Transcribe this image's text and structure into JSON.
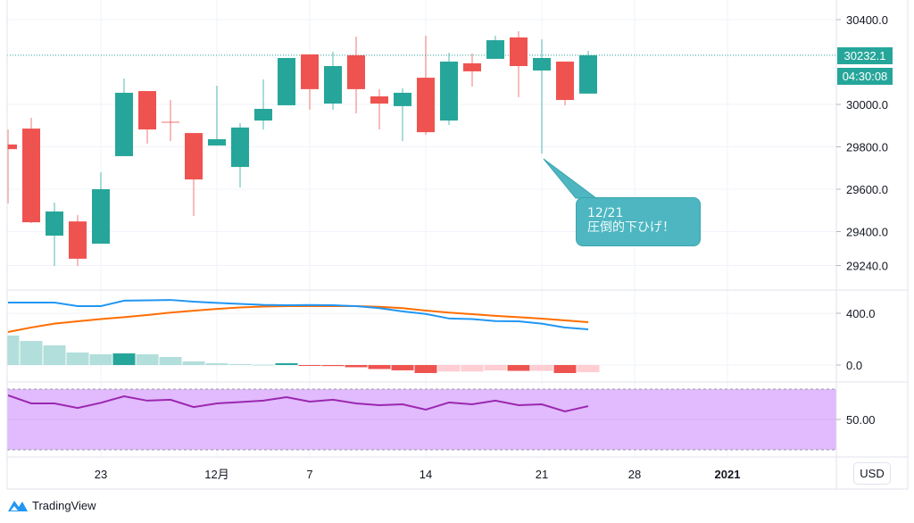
{
  "header": {
    "currency_button": "USD"
  },
  "price_tags": {
    "last_price": "30232.1",
    "countdown": "04:30:08"
  },
  "annotation": {
    "line1": "12/21",
    "line2": "圧倒的下ひげ！"
  },
  "footer": {
    "brand": "TradingView"
  },
  "colors": {
    "up": "#26a69a",
    "down": "#ef5350",
    "macd_line": "#2196f3",
    "signal_line": "#ff6d00",
    "hist_up_strong": "#26a69a",
    "hist_up_weak": "#b2dfdb",
    "hist_down_strong": "#ef5350",
    "hist_down_weak": "#ffcdd2",
    "rsi_line": "#9c27b0",
    "rsi_band": "#e1bbfd",
    "callout": "#4db6c1"
  },
  "chart_data": [
    {
      "type": "candlestick",
      "title": "",
      "yticks": [
        "30400.0",
        "30000.0",
        "29800.0",
        "29600.0",
        "29400.0",
        "29240.0"
      ],
      "ytick_values": [
        30400,
        30000,
        29800,
        29600,
        29400,
        29240
      ],
      "xticks": [
        {
          "label": "23",
          "date": "2020-11-23"
        },
        {
          "label": "12月",
          "date": "2020-12-01"
        },
        {
          "label": "7",
          "date": "2020-12-07"
        },
        {
          "label": "14",
          "date": "2020-12-14"
        },
        {
          "label": "21",
          "date": "2020-12-21"
        },
        {
          "label": "28",
          "date": "2020-12-28"
        },
        {
          "label": "2021",
          "date": "2021-01-04",
          "bold": true
        }
      ],
      "last_price": 30232.1,
      "grid": true,
      "candles": [
        {
          "date": "2020-11-17",
          "o": 29811,
          "h": 29882,
          "l": 29533,
          "c": 29789
        },
        {
          "date": "2020-11-18",
          "o": 29886,
          "h": 29937,
          "l": 29440,
          "c": 29444
        },
        {
          "date": "2020-11-19",
          "o": 29381,
          "h": 29537,
          "l": 29238,
          "c": 29495
        },
        {
          "date": "2020-11-20",
          "o": 29448,
          "h": 29478,
          "l": 29238,
          "c": 29272
        },
        {
          "date": "2020-11-23",
          "o": 29343,
          "h": 29680,
          "l": 29343,
          "c": 29600
        },
        {
          "date": "2020-11-24",
          "o": 29756,
          "h": 30122,
          "l": 29756,
          "c": 30055
        },
        {
          "date": "2020-11-25",
          "o": 30063,
          "h": 30063,
          "l": 29815,
          "c": 29882
        },
        {
          "date": "2020-11-27",
          "o": 29916,
          "h": 30021,
          "l": 29827,
          "c": 29916
        },
        {
          "date": "2020-11-30",
          "o": 29865,
          "h": 29865,
          "l": 29474,
          "c": 29646
        },
        {
          "date": "2020-12-01",
          "o": 29806,
          "h": 30088,
          "l": 29806,
          "c": 29836
        },
        {
          "date": "2020-12-02",
          "o": 29705,
          "h": 29912,
          "l": 29608,
          "c": 29891
        },
        {
          "date": "2020-12-03",
          "o": 29924,
          "h": 30118,
          "l": 29882,
          "c": 29979
        },
        {
          "date": "2020-12-04",
          "o": 29996,
          "h": 30219,
          "l": 29996,
          "c": 30219
        },
        {
          "date": "2020-12-07",
          "o": 30236,
          "h": 30236,
          "l": 29975,
          "c": 30072
        },
        {
          "date": "2020-12-08",
          "o": 30004,
          "h": 30248,
          "l": 29975,
          "c": 30181
        },
        {
          "date": "2020-12-09",
          "o": 30232,
          "h": 30320,
          "l": 29958,
          "c": 30072
        },
        {
          "date": "2020-12-10",
          "o": 30038,
          "h": 30072,
          "l": 29882,
          "c": 30004
        },
        {
          "date": "2020-12-11",
          "o": 29992,
          "h": 30076,
          "l": 29827,
          "c": 30055
        },
        {
          "date": "2020-12-14",
          "o": 30126,
          "h": 30324,
          "l": 29857,
          "c": 29869
        },
        {
          "date": "2020-12-15",
          "o": 29924,
          "h": 30244,
          "l": 29903,
          "c": 30202
        },
        {
          "date": "2020-12-16",
          "o": 30194,
          "h": 30240,
          "l": 30084,
          "c": 30156
        },
        {
          "date": "2020-12-17",
          "o": 30215,
          "h": 30324,
          "l": 30215,
          "c": 30303
        },
        {
          "date": "2020-12-18",
          "o": 30316,
          "h": 30345,
          "l": 30034,
          "c": 30181
        },
        {
          "date": "2020-12-21",
          "o": 30160,
          "h": 30307,
          "l": 29768,
          "c": 30219
        },
        {
          "date": "2020-12-22",
          "o": 30202,
          "h": 30202,
          "l": 29996,
          "c": 30021
        },
        {
          "date": "2020-12-23",
          "o": 30051,
          "h": 30253,
          "l": 30051,
          "c": 30232.1
        }
      ]
    },
    {
      "type": "line+bar",
      "yticks": [
        "400.0",
        "0.0"
      ],
      "ytick_values": [
        400,
        0
      ],
      "macd": [
        483,
        483,
        483,
        455,
        455,
        497,
        500,
        503,
        490,
        480,
        472,
        465,
        462,
        464,
        462,
        455,
        440,
        415,
        395,
        360,
        355,
        340,
        338,
        320,
        290,
        276
      ],
      "signal": [
        255,
        290,
        320,
        338,
        355,
        370,
        386,
        405,
        420,
        434,
        445,
        452,
        455,
        455,
        455,
        455,
        450,
        440,
        421,
        405,
        393,
        380,
        370,
        359,
        345,
        331
      ],
      "histogram": [
        228,
        186,
        152,
        97,
        83,
        90,
        83,
        62,
        28,
        14,
        7,
        3,
        14,
        -5,
        -8,
        -17,
        -31,
        -41,
        -62,
        -50,
        -50,
        -41,
        -45,
        -45,
        -62,
        -55
      ]
    },
    {
      "type": "line",
      "yticks": [
        "50.00"
      ],
      "ytick_values": [
        50
      ],
      "band": [
        30,
        70
      ],
      "rsi": [
        65.9,
        60.6,
        60.6,
        57.6,
        61,
        65.3,
        62.4,
        63,
        58.2,
        60.6,
        61.5,
        62.4,
        64.7,
        61.8,
        63,
        60.6,
        59.4,
        60,
        56.5,
        61.2,
        60,
        62.4,
        59.4,
        60,
        55.3,
        58.8
      ]
    }
  ]
}
